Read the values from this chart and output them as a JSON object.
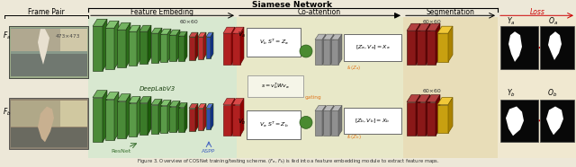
{
  "fig_width": 6.4,
  "fig_height": 1.86,
  "bg_color": "#ede8d8",
  "siamese_label": "Siamese Network",
  "section_labels": [
    "Frame Pair",
    "Feature Embeding",
    "Co-attention",
    "Segmentation",
    "Loss"
  ],
  "deeplab_label": "DeepLabV3",
  "resnet_label": "ResNet",
  "aspp_label": "ASPP",
  "size_60x60": "60×60",
  "size_473x473": "473×473",
  "loss_color": "#cc0000",
  "orange_color": "#e07820",
  "green_arrow_color": "#3a7030",
  "blue_aspp_color": "#4060c0",
  "fe_bg": "#d8e8d0",
  "ca_bg": "#e8e8c8",
  "seg_bg": "#e8ddb8",
  "out_bg": "#f0e8d0"
}
